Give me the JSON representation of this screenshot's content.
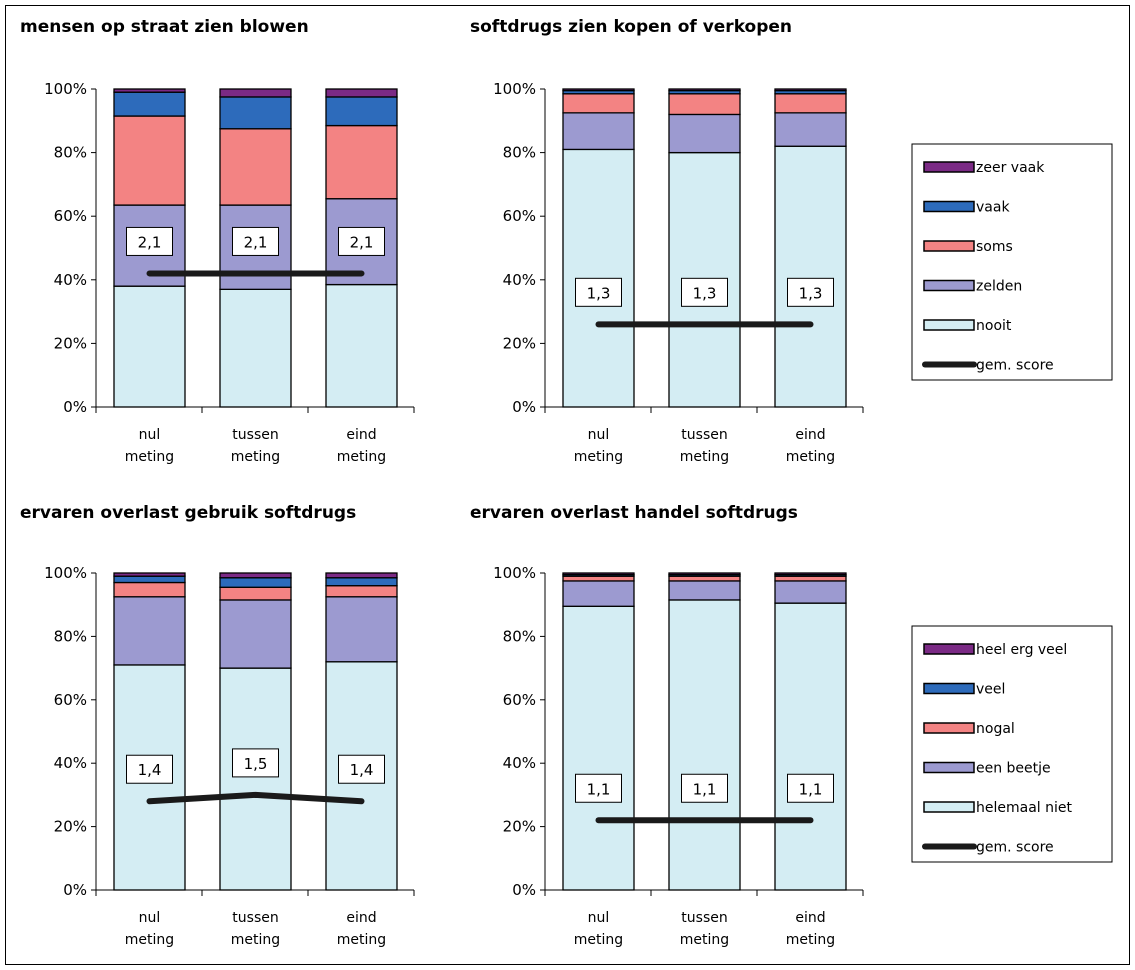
{
  "colors": {
    "nooit": "#d4edf3",
    "zelden": "#9c9ad0",
    "soms": "#f38383",
    "vaak": "#2d6bbb",
    "zeer_vaak": "#7b2a85",
    "line": "#1a1a1a"
  },
  "legends": [
    {
      "items": [
        {
          "label": "zeer vaak",
          "color": "#7b2a85",
          "kind": "box"
        },
        {
          "label": "vaak",
          "color": "#2d6bbb",
          "kind": "box"
        },
        {
          "label": "soms",
          "color": "#f38383",
          "kind": "box"
        },
        {
          "label": "zelden",
          "color": "#9c9ad0",
          "kind": "box"
        },
        {
          "label": "nooit",
          "color": "#d4edf3",
          "kind": "box"
        },
        {
          "label": "gem. score",
          "color": "#1a1a1a",
          "kind": "line"
        }
      ]
    },
    {
      "items": [
        {
          "label": "heel erg veel",
          "color": "#7b2a85",
          "kind": "box"
        },
        {
          "label": "veel",
          "color": "#2d6bbb",
          "kind": "box"
        },
        {
          "label": "nogal",
          "color": "#f38383",
          "kind": "box"
        },
        {
          "label": "een beetje",
          "color": "#9c9ad0",
          "kind": "box"
        },
        {
          "label": "helemaal niet",
          "color": "#d4edf3",
          "kind": "box"
        },
        {
          "label": "gem. score",
          "color": "#1a1a1a",
          "kind": "line"
        }
      ]
    }
  ],
  "chart_data": [
    {
      "type": "bar",
      "stacked": true,
      "title": "mensen op straat zien blowen",
      "categories": [
        [
          "nul",
          "meting"
        ],
        [
          "tussen",
          "meting"
        ],
        [
          "eind",
          "meting"
        ]
      ],
      "ylim": [
        0,
        100
      ],
      "yticks": [
        "0%",
        "20%",
        "40%",
        "60%",
        "80%",
        "100%"
      ],
      "series": [
        {
          "name": "nooit",
          "values": [
            38,
            37,
            38.5
          ]
        },
        {
          "name": "zelden",
          "values": [
            25.5,
            26.5,
            27
          ]
        },
        {
          "name": "soms",
          "values": [
            28,
            24,
            23
          ]
        },
        {
          "name": "vaak",
          "values": [
            7.5,
            10,
            9
          ]
        },
        {
          "name": "zeer vaak",
          "values": [
            1,
            2.5,
            2.5
          ]
        }
      ],
      "line": {
        "name": "gem. score",
        "values": [
          42,
          42,
          42
        ]
      },
      "score_labels": [
        "2,1",
        "2,1",
        "2,1"
      ],
      "legend": 0
    },
    {
      "type": "bar",
      "stacked": true,
      "title": "softdrugs zien kopen of verkopen",
      "categories": [
        [
          "nul",
          "meting"
        ],
        [
          "tussen",
          "meting"
        ],
        [
          "eind",
          "meting"
        ]
      ],
      "ylim": [
        0,
        100
      ],
      "yticks": [
        "0%",
        "20%",
        "40%",
        "60%",
        "80%",
        "100%"
      ],
      "series": [
        {
          "name": "nooit",
          "values": [
            81,
            80,
            82
          ]
        },
        {
          "name": "zelden",
          "values": [
            11.5,
            12,
            10.5
          ]
        },
        {
          "name": "soms",
          "values": [
            6,
            6.5,
            6
          ]
        },
        {
          "name": "vaak",
          "values": [
            1,
            1,
            1
          ]
        },
        {
          "name": "zeer vaak",
          "values": [
            0.5,
            0.5,
            0.5
          ]
        }
      ],
      "line": {
        "name": "gem. score",
        "values": [
          26,
          26,
          26
        ]
      },
      "score_labels": [
        "1,3",
        "1,3",
        "1,3"
      ],
      "legend": 0
    },
    {
      "type": "bar",
      "stacked": true,
      "title": "ervaren overlast gebruik softdrugs",
      "categories": [
        [
          "nul",
          "meting"
        ],
        [
          "tussen",
          "meting"
        ],
        [
          "eind",
          "meting"
        ]
      ],
      "ylim": [
        0,
        100
      ],
      "yticks": [
        "0%",
        "20%",
        "40%",
        "60%",
        "80%",
        "100%"
      ],
      "series": [
        {
          "name": "helemaal niet",
          "values": [
            71,
            70,
            72
          ]
        },
        {
          "name": "een beetje",
          "values": [
            21.5,
            21.5,
            20.5
          ]
        },
        {
          "name": "nogal",
          "values": [
            4.5,
            4,
            3.5
          ]
        },
        {
          "name": "veel",
          "values": [
            2,
            3,
            2.5
          ]
        },
        {
          "name": "heel erg veel",
          "values": [
            1,
            1.5,
            1.5
          ]
        }
      ],
      "line": {
        "name": "gem. score",
        "values": [
          28,
          30,
          28
        ]
      },
      "score_labels": [
        "1,4",
        "1,5",
        "1,4"
      ],
      "legend": 1
    },
    {
      "type": "bar",
      "stacked": true,
      "title": "ervaren overlast handel softdrugs",
      "categories": [
        [
          "nul",
          "meting"
        ],
        [
          "tussen",
          "meting"
        ],
        [
          "eind",
          "meting"
        ]
      ],
      "ylim": [
        0,
        100
      ],
      "yticks": [
        "0%",
        "20%",
        "40%",
        "60%",
        "80%",
        "100%"
      ],
      "series": [
        {
          "name": "helemaal niet",
          "values": [
            89.5,
            91.5,
            90.5
          ]
        },
        {
          "name": "een beetje",
          "values": [
            8,
            6,
            7
          ]
        },
        {
          "name": "nogal",
          "values": [
            1.5,
            1.5,
            1.5
          ]
        },
        {
          "name": "veel",
          "values": [
            0.5,
            0.5,
            0.5
          ]
        },
        {
          "name": "heel erg veel",
          "values": [
            0.5,
            0.5,
            0.5
          ]
        }
      ],
      "line": {
        "name": "gem. score",
        "values": [
          22,
          22,
          22
        ]
      },
      "score_labels": [
        "1,1",
        "1,1",
        "1,1"
      ],
      "legend": 1
    }
  ]
}
